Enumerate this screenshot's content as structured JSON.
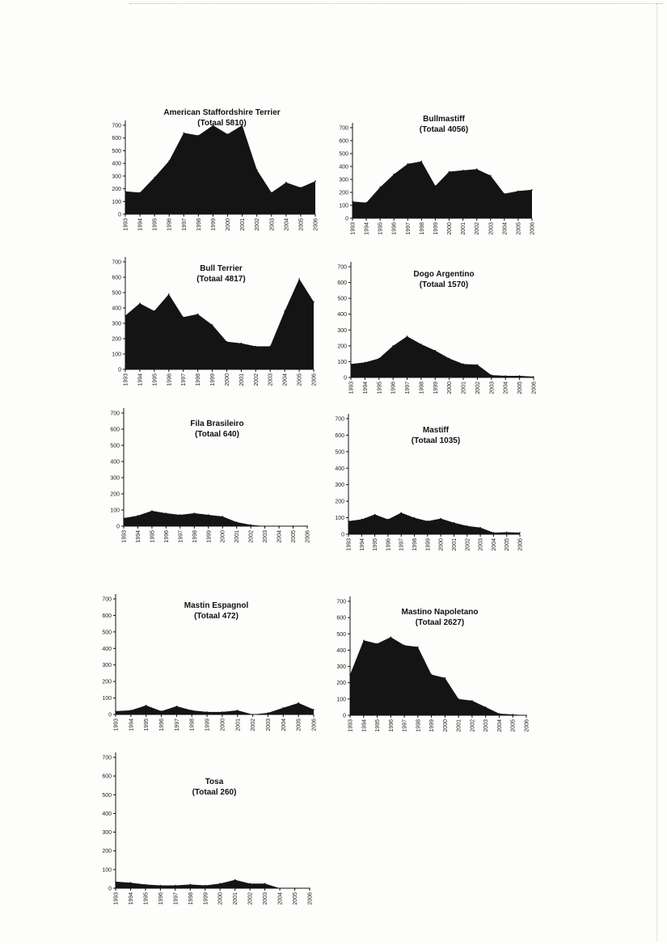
{
  "chart_data": [
    {
      "type": "area",
      "title": "American Staffordshire Terrier",
      "subtitle": "(Totaal 5810)",
      "x": [
        1993,
        1994,
        1995,
        1996,
        1997,
        1998,
        1999,
        2000,
        2001,
        2002,
        2003,
        2004,
        2005,
        2006
      ],
      "x_tick_labels": [
        "1993",
        "1994",
        "1995",
        "1996",
        "1997",
        "1998",
        "1999",
        "2000",
        "2001",
        "2002",
        "2003",
        "2004",
        "2005",
        "2006"
      ],
      "values": [
        180,
        170,
        290,
        420,
        640,
        620,
        700,
        630,
        700,
        350,
        170,
        250,
        210,
        260
      ],
      "y_ticks": [
        "0",
        "100",
        "200",
        "300",
        "400",
        "500",
        "600",
        "700"
      ],
      "ylim": [
        0,
        700
      ]
    },
    {
      "type": "area",
      "title": "Bullmastiff",
      "subtitle": "(Totaal 4056)",
      "x": [
        1993,
        1994,
        1995,
        1996,
        1997,
        1998,
        1999,
        2000,
        2001,
        2002,
        2003,
        2004,
        2005,
        2006
      ],
      "x_tick_labels": [
        "1993",
        "1994",
        "1995",
        "1996",
        "1997",
        "1998",
        "1999",
        "2000",
        "2001",
        "2002",
        "2003",
        "2004",
        "2005",
        "2006"
      ],
      "values": [
        130,
        120,
        240,
        340,
        420,
        440,
        250,
        360,
        370,
        380,
        330,
        190,
        210,
        220
      ],
      "y_ticks": [
        "0",
        "100",
        "200",
        "300",
        "400",
        "500",
        "600",
        "700"
      ],
      "ylim": [
        0,
        700
      ]
    },
    {
      "type": "area",
      "title": "Bull Terrier",
      "subtitle": "(Totaal 4817)",
      "x": [
        1993,
        1994,
        1995,
        1996,
        1997,
        1998,
        1999,
        2000,
        2001,
        2002,
        2003,
        2004,
        2005,
        2006
      ],
      "x_tick_labels": [
        "1993",
        "1994",
        "1995",
        "1996",
        "1997",
        "1998",
        "1999",
        "2000",
        "2001",
        "2002",
        "2003",
        "2004",
        "2005",
        "2006"
      ],
      "values": [
        350,
        430,
        380,
        490,
        340,
        360,
        290,
        180,
        170,
        150,
        150,
        380,
        590,
        440
      ],
      "y_ticks": [
        "0",
        "100",
        "200",
        "300",
        "400",
        "500",
        "600",
        "700"
      ],
      "ylim": [
        0,
        700
      ]
    },
    {
      "type": "area",
      "title": "Dogo Argentino",
      "subtitle": "(Totaal 1570)",
      "x": [
        1993,
        1994,
        1995,
        1996,
        1997,
        1998,
        1999,
        2000,
        2001,
        2002,
        2003,
        2004,
        2005,
        2006
      ],
      "x_tick_labels": [
        "1993",
        "1994",
        "1995",
        "1996",
        "1997",
        "1998",
        "1999",
        "2000",
        "2001",
        "2002",
        "2003",
        "2004",
        "2005",
        "2006"
      ],
      "values": [
        85,
        95,
        120,
        200,
        260,
        210,
        170,
        120,
        85,
        80,
        15,
        10,
        10,
        5
      ],
      "y_ticks": [
        "0",
        "100",
        "200",
        "300",
        "400",
        "500",
        "600",
        "700"
      ],
      "ylim": [
        0,
        700
      ]
    },
    {
      "type": "area",
      "title": "Fila Brasileiro",
      "subtitle": "(Totaal 640)",
      "x": [
        1993,
        1994,
        1995,
        1996,
        1997,
        1998,
        1999,
        2000,
        2001,
        2002,
        2003,
        2004,
        2005,
        2006
      ],
      "x_tick_labels": [
        "1993",
        "1994",
        "1995",
        "1996",
        "1997",
        "1998",
        "1999",
        "2000",
        "2001",
        "2002",
        "2003",
        "2004",
        "2005",
        "2006"
      ],
      "values": [
        50,
        65,
        95,
        80,
        70,
        80,
        70,
        60,
        25,
        8,
        0,
        0,
        0,
        0
      ],
      "y_ticks": [
        "0",
        "100",
        "200",
        "300",
        "400",
        "500",
        "600",
        "700"
      ],
      "ylim": [
        0,
        700
      ]
    },
    {
      "type": "area",
      "title": "Mastiff",
      "subtitle": "(Totaal 1035)",
      "x": [
        1993,
        1994,
        1995,
        1996,
        1997,
        1998,
        1999,
        2000,
        2001,
        2002,
        2003,
        2004,
        2005,
        2006
      ],
      "x_tick_labels": [
        "1993",
        "1994",
        "1995",
        "1996",
        "1997",
        "1998",
        "1999",
        "2000",
        "2001",
        "2002",
        "2003",
        "2004",
        "2005",
        "2006"
      ],
      "values": [
        80,
        90,
        120,
        90,
        130,
        100,
        80,
        95,
        70,
        50,
        40,
        10,
        12,
        10
      ],
      "y_ticks": [
        "0",
        "100",
        "200",
        "300",
        "400",
        "500",
        "600",
        "700"
      ],
      "ylim": [
        0,
        700
      ]
    },
    {
      "type": "area",
      "title": "Mastin Espagnol",
      "subtitle": "(Totaal 472)",
      "x": [
        1993,
        1994,
        1995,
        1996,
        1997,
        1998,
        1999,
        2000,
        2001,
        2002,
        2003,
        2004,
        2005,
        2006
      ],
      "x_tick_labels": [
        "1993",
        "1994",
        "1995",
        "1996",
        "1997",
        "1998",
        "1999",
        "2000",
        "2001",
        "2002",
        "2003",
        "2004",
        "2005",
        "2006"
      ],
      "values": [
        20,
        25,
        55,
        20,
        50,
        25,
        15,
        15,
        25,
        0,
        10,
        40,
        70,
        30
      ],
      "y_ticks": [
        "0",
        "100",
        "200",
        "300",
        "400",
        "500",
        "600",
        "700"
      ],
      "ylim": [
        0,
        700
      ]
    },
    {
      "type": "area",
      "title": "Mastino Napoletano",
      "subtitle": "(Totaal 2627)",
      "x": [
        1993,
        1994,
        1995,
        1996,
        1997,
        1998,
        1999,
        2000,
        2001,
        2002,
        2003,
        2004,
        2005,
        2006
      ],
      "x_tick_labels": [
        "1993",
        "1994",
        "1995",
        "1996",
        "1997",
        "1998",
        "1999",
        "2000",
        "2001",
        "2002",
        "2003",
        "2004",
        "2005",
        "2006"
      ],
      "values": [
        250,
        460,
        440,
        480,
        430,
        420,
        250,
        230,
        100,
        90,
        50,
        10,
        5,
        0
      ],
      "y_ticks": [
        "0",
        "100",
        "200",
        "300",
        "400",
        "500",
        "600",
        "700"
      ],
      "ylim": [
        0,
        700
      ]
    },
    {
      "type": "area",
      "title": "Tosa",
      "subtitle": "(Totaal 260)",
      "x": [
        1993,
        1994,
        1995,
        1996,
        1997,
        1998,
        1999,
        2000,
        2001,
        2002,
        2003,
        2004,
        2005,
        2006
      ],
      "x_tick_labels": [
        "1993",
        "1994",
        "1995",
        "1996",
        "1997",
        "1998",
        "1999",
        "2000",
        "2001",
        "2002",
        "2003",
        "2004",
        "2005",
        "2006"
      ],
      "values": [
        35,
        30,
        20,
        15,
        15,
        20,
        15,
        25,
        45,
        25,
        25,
        0,
        0,
        0
      ],
      "y_ticks": [
        "0",
        "100",
        "200",
        "300",
        "400",
        "500",
        "600",
        "700"
      ],
      "ylim": [
        0,
        700
      ]
    }
  ]
}
